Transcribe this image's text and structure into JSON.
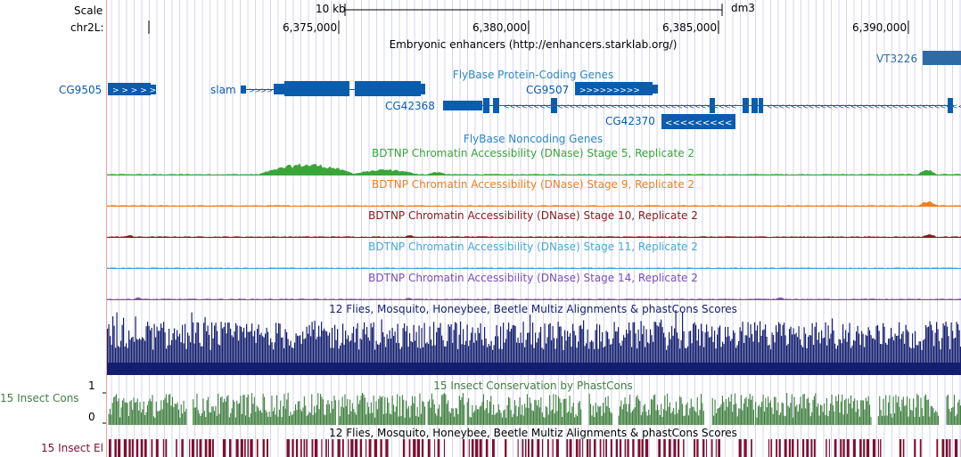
{
  "ruler": {
    "scale_label": "Scale",
    "scale_bar_label": "10 kb",
    "assembly": "dm3",
    "chrom_label": "chr2L:",
    "positions": [
      "6,375,000",
      "6,380,000",
      "6,385,000",
      "6,390,000"
    ]
  },
  "tracks": {
    "enhancers": {
      "title": "Embryonic enhancers (http://enhancers.starklab.org/)",
      "items": [
        "VT3226"
      ]
    },
    "flybase_protein": {
      "title": "FlyBase Protein-Coding Genes",
      "genes": [
        "CG9505",
        "slam",
        "CG9507",
        "CG42368",
        "CG42370"
      ]
    },
    "flybase_noncoding": {
      "title": "FlyBase Noncoding Genes"
    },
    "dnase_s5": {
      "title": "BDTNP Chromatin Accessibility (DNase) Stage 5, Replicate 2"
    },
    "dnase_s9": {
      "title": "BDTNP Chromatin Accessibility (DNase) Stage 9, Replicate 2"
    },
    "dnase_s10": {
      "title": "BDTNP Chromatin Accessibility (DNase) Stage 10, Replicate 2"
    },
    "dnase_s11": {
      "title": "BDTNP Chromatin Accessibility (DNase) Stage 11, Replicate 2"
    },
    "dnase_s14": {
      "title": "BDTNP Chromatin Accessibility (DNase) Stage 14, Replicate 2"
    },
    "multiz": {
      "title": "12 Flies, Mosquito, Honeybee, Beetle Multiz Alignments & phastCons Scores"
    },
    "phastcons": {
      "title": "15 Insect Conservation by PhastCons",
      "side_label": "15 Insect Cons",
      "axis_max": "1",
      "axis_min": "0"
    },
    "elements": {
      "title": "12 Flies, Mosquito, Honeybee, Beetle Multiz Alignments & phastCons Scores",
      "side_label": "15 Insect El"
    }
  },
  "colors": {
    "gene": "#0a5cad",
    "noncoding": "#2e86c1",
    "stage5": "#3aa63a",
    "stage9": "#f07f1f",
    "stage10": "#8b1a1a",
    "stage11": "#48a9d6",
    "stage14": "#7b4fb5",
    "multiz": "#141e6e",
    "phastcons": "#3f7f3f",
    "elements": "#7a1030",
    "grid": "#d6d6f0"
  }
}
